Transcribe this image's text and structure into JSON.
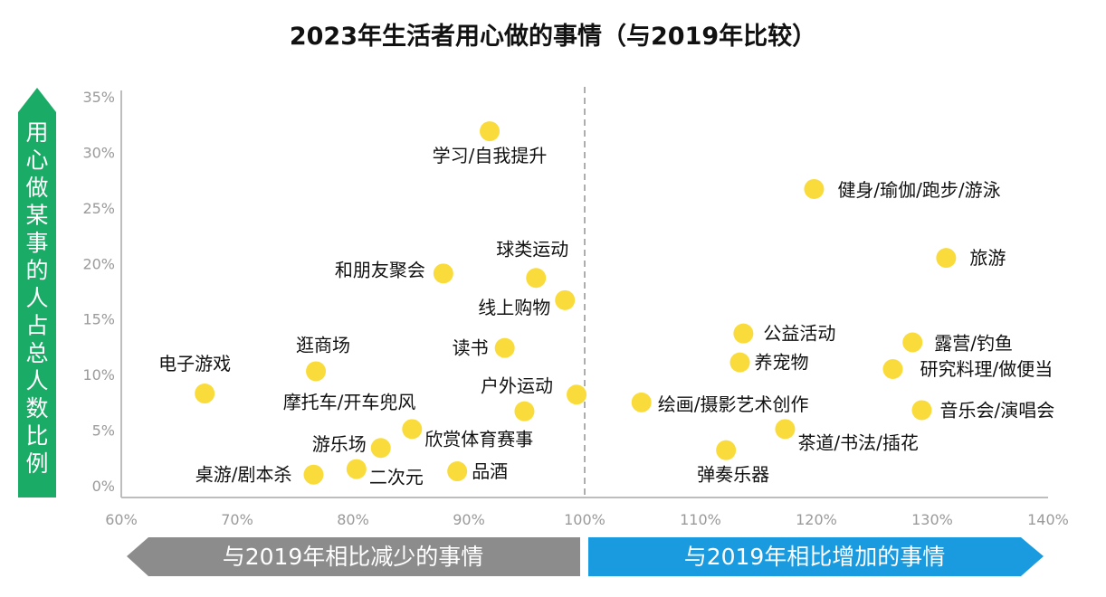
{
  "chart_data": {
    "type": "scatter",
    "title": "2023年生活者用心做的事情（与2019年比较）",
    "xlabel": "",
    "ylabel": "用心做某事的人占总人数比例",
    "xlim": [
      60,
      140
    ],
    "ylim": [
      0,
      35
    ],
    "x_ticks": [
      "60%",
      "70%",
      "80%",
      "90%",
      "100%",
      "110%",
      "120%",
      "130%",
      "140%"
    ],
    "y_ticks": [
      "0%",
      "5%",
      "10%",
      "15%",
      "20%",
      "25%",
      "30%",
      "35%"
    ],
    "reference_line_x": 100,
    "grid": false,
    "point_color": "#f9dc3c",
    "points": [
      {
        "label": "学习/自我提升",
        "x": 91.8,
        "y": 31.9
      },
      {
        "label": "健身/瑜伽/跑步/游泳",
        "x": 119.8,
        "y": 26.7
      },
      {
        "label": "旅游",
        "x": 131.2,
        "y": 20.5
      },
      {
        "label": "和朋友聚会",
        "x": 87.8,
        "y": 19.1
      },
      {
        "label": "球类运动",
        "x": 95.8,
        "y": 18.7
      },
      {
        "label": "线上购物",
        "x": 98.3,
        "y": 16.7
      },
      {
        "label": "读书",
        "x": 93.1,
        "y": 12.4
      },
      {
        "label": "逛商场",
        "x": 76.8,
        "y": 10.3
      },
      {
        "label": "电子游戏",
        "x": 67.2,
        "y": 8.3
      },
      {
        "label": "户外运动",
        "x": 99.3,
        "y": 8.2
      },
      {
        "label": "摩托车/开车兜风",
        "x": 94.8,
        "y": 6.7
      },
      {
        "label": "欣赏体育赛事",
        "x": 85.1,
        "y": 5.1
      },
      {
        "label": "游乐场",
        "x": 82.4,
        "y": 3.4
      },
      {
        "label": "桌游/剧本杀",
        "x": 76.6,
        "y": 1.0
      },
      {
        "label": "二次元",
        "x": 80.3,
        "y": 1.5
      },
      {
        "label": "品酒",
        "x": 89.0,
        "y": 1.3
      },
      {
        "label": "公益活动",
        "x": 113.7,
        "y": 13.7
      },
      {
        "label": "养宠物",
        "x": 113.4,
        "y": 11.1
      },
      {
        "label": "露营/钓鱼",
        "x": 128.3,
        "y": 12.9
      },
      {
        "label": "研究料理/做便当",
        "x": 126.6,
        "y": 10.5
      },
      {
        "label": "绘画/摄影艺术创作",
        "x": 104.9,
        "y": 7.5
      },
      {
        "label": "音乐会/演唱会",
        "x": 129.1,
        "y": 6.8
      },
      {
        "label": "茶道/书法/插花",
        "x": 117.3,
        "y": 5.1
      },
      {
        "label": "弹奏乐器",
        "x": 112.2,
        "y": 3.2
      }
    ],
    "banners": {
      "left": {
        "text": "与2019年相比减少的事情",
        "color": "#8c8c8c"
      },
      "right": {
        "text": "与2019年相比增加的事情",
        "color": "#1a9be0"
      }
    },
    "ylabel_color": "#1aab66"
  }
}
